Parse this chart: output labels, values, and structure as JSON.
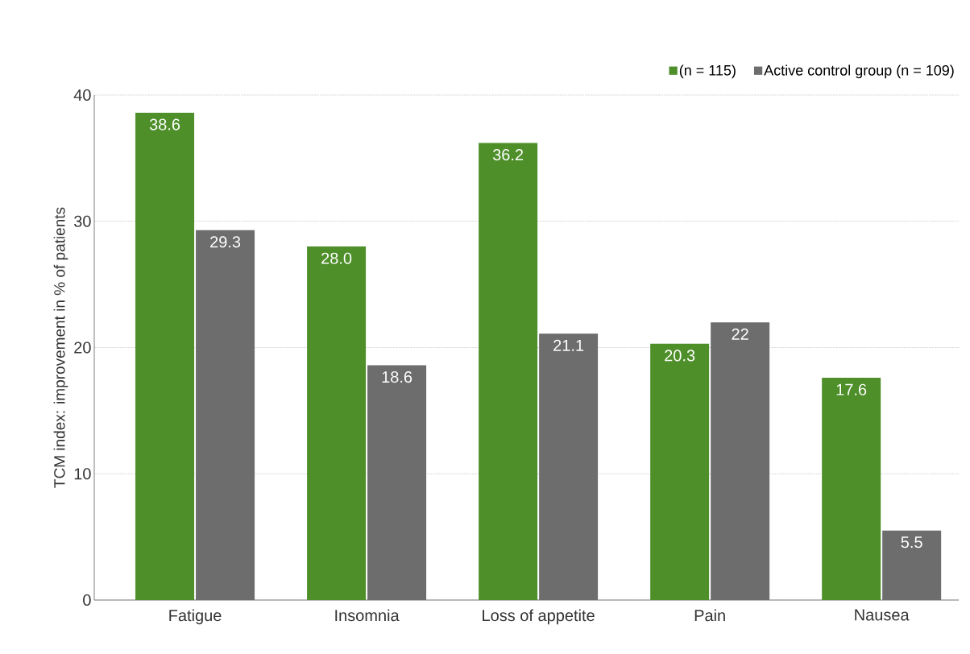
{
  "chart_data": {
    "type": "bar",
    "ylabel": "TCM index: improvement in % of patients",
    "categories": [
      "Fatigue",
      "Insomnia",
      "Loss of appetite",
      "Pain",
      "Nausea"
    ],
    "series": [
      {
        "name": "(n = 115)",
        "color": "#4e8f2a",
        "values": [
          38.6,
          28.0,
          36.2,
          20.3,
          17.6
        ],
        "value_labels": [
          "38.6",
          "28.0",
          "36.2",
          "20.3",
          "17.6"
        ]
      },
      {
        "name": "Active control group (n = 109)",
        "color": "#6d6d6d",
        "values": [
          29.3,
          18.6,
          21.1,
          22,
          5.5
        ],
        "value_labels": [
          "29.3",
          "18.6",
          "21.1",
          "22",
          "5.5"
        ]
      }
    ],
    "ylim": [
      0,
      40
    ],
    "yticks": [
      0,
      10,
      20,
      30,
      40
    ],
    "grid": "y",
    "legend": "top right"
  }
}
